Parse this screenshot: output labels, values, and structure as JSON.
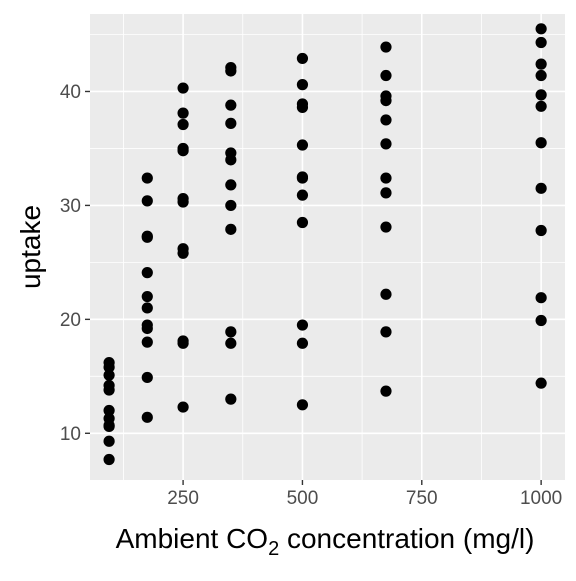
{
  "chart_data": {
    "type": "scatter",
    "title": "",
    "xlabel_main": "Ambient CO",
    "xlabel_sub": "2",
    "xlabel_rest": " concentration ",
    "xlabel_unit": "(mg/l)",
    "ylabel": "uptake",
    "xlim": [
      55,
      1050
    ],
    "ylim": [
      5.9,
      46.8
    ],
    "x_ticks": [
      250,
      500,
      750,
      1000
    ],
    "x_tick_labels": [
      "250",
      "500",
      "750",
      "1000"
    ],
    "y_ticks": [
      10,
      20,
      30,
      40
    ],
    "y_tick_labels": [
      "10",
      "20",
      "30",
      "40"
    ],
    "grid": true,
    "panel_background": "#EBEBEB",
    "grid_color": "#FFFFFF",
    "point_color": "#000000",
    "text_color": "#000000",
    "tick_label_color": "#4D4D4D",
    "points": [
      {
        "x": 95,
        "y": 16.2
      },
      {
        "x": 95,
        "y": 15.8
      },
      {
        "x": 95,
        "y": 15.1
      },
      {
        "x": 95,
        "y": 14.2
      },
      {
        "x": 95,
        "y": 13.8
      },
      {
        "x": 95,
        "y": 12.0
      },
      {
        "x": 95,
        "y": 11.3
      },
      {
        "x": 95,
        "y": 10.7
      },
      {
        "x": 95,
        "y": 10.6
      },
      {
        "x": 95,
        "y": 9.3
      },
      {
        "x": 95,
        "y": 7.7
      },
      {
        "x": 175,
        "y": 32.4
      },
      {
        "x": 175,
        "y": 30.4
      },
      {
        "x": 175,
        "y": 27.3
      },
      {
        "x": 175,
        "y": 27.2
      },
      {
        "x": 175,
        "y": 24.1
      },
      {
        "x": 175,
        "y": 22.0
      },
      {
        "x": 175,
        "y": 21.0
      },
      {
        "x": 175,
        "y": 19.5
      },
      {
        "x": 175,
        "y": 19.2
      },
      {
        "x": 175,
        "y": 18.0
      },
      {
        "x": 175,
        "y": 14.9
      },
      {
        "x": 175,
        "y": 11.4
      },
      {
        "x": 250,
        "y": 40.3
      },
      {
        "x": 250,
        "y": 38.1
      },
      {
        "x": 250,
        "y": 37.1
      },
      {
        "x": 250,
        "y": 35.0
      },
      {
        "x": 250,
        "y": 34.8
      },
      {
        "x": 250,
        "y": 30.6
      },
      {
        "x": 250,
        "y": 30.3
      },
      {
        "x": 250,
        "y": 26.2
      },
      {
        "x": 250,
        "y": 25.8
      },
      {
        "x": 250,
        "y": 18.1
      },
      {
        "x": 250,
        "y": 17.9
      },
      {
        "x": 250,
        "y": 12.3
      },
      {
        "x": 350,
        "y": 42.1
      },
      {
        "x": 350,
        "y": 41.8
      },
      {
        "x": 350,
        "y": 38.8
      },
      {
        "x": 350,
        "y": 37.2
      },
      {
        "x": 350,
        "y": 34.6
      },
      {
        "x": 350,
        "y": 34.0
      },
      {
        "x": 350,
        "y": 31.8
      },
      {
        "x": 350,
        "y": 30.0
      },
      {
        "x": 350,
        "y": 27.9
      },
      {
        "x": 350,
        "y": 18.9
      },
      {
        "x": 350,
        "y": 17.9
      },
      {
        "x": 350,
        "y": 13.0
      },
      {
        "x": 500,
        "y": 42.9
      },
      {
        "x": 500,
        "y": 40.6
      },
      {
        "x": 500,
        "y": 38.9
      },
      {
        "x": 500,
        "y": 38.6
      },
      {
        "x": 500,
        "y": 35.3
      },
      {
        "x": 500,
        "y": 32.5
      },
      {
        "x": 500,
        "y": 32.4
      },
      {
        "x": 500,
        "y": 30.9
      },
      {
        "x": 500,
        "y": 28.5
      },
      {
        "x": 500,
        "y": 19.5
      },
      {
        "x": 500,
        "y": 17.9
      },
      {
        "x": 500,
        "y": 12.5
      },
      {
        "x": 675,
        "y": 43.9
      },
      {
        "x": 675,
        "y": 41.4
      },
      {
        "x": 675,
        "y": 39.6
      },
      {
        "x": 675,
        "y": 39.2
      },
      {
        "x": 675,
        "y": 37.5
      },
      {
        "x": 675,
        "y": 35.4
      },
      {
        "x": 675,
        "y": 32.4
      },
      {
        "x": 675,
        "y": 31.1
      },
      {
        "x": 675,
        "y": 28.1
      },
      {
        "x": 675,
        "y": 22.2
      },
      {
        "x": 675,
        "y": 18.9
      },
      {
        "x": 675,
        "y": 13.7
      },
      {
        "x": 1000,
        "y": 45.5
      },
      {
        "x": 1000,
        "y": 44.3
      },
      {
        "x": 1000,
        "y": 42.4
      },
      {
        "x": 1000,
        "y": 41.4
      },
      {
        "x": 1000,
        "y": 39.7
      },
      {
        "x": 1000,
        "y": 38.7
      },
      {
        "x": 1000,
        "y": 35.5
      },
      {
        "x": 1000,
        "y": 31.5
      },
      {
        "x": 1000,
        "y": 27.8
      },
      {
        "x": 1000,
        "y": 21.9
      },
      {
        "x": 1000,
        "y": 19.9
      },
      {
        "x": 1000,
        "y": 14.4
      }
    ]
  }
}
